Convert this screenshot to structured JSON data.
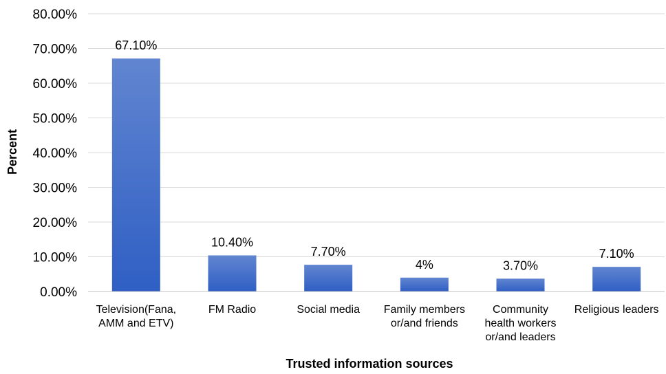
{
  "chart_data": {
    "type": "bar",
    "categories": [
      [
        "Television(Fana,",
        "AMM and ETV)"
      ],
      [
        "FM Radio"
      ],
      [
        "Social media"
      ],
      [
        "Family members",
        "or/and friends"
      ],
      [
        "Community",
        "health workers",
        "or/and leaders"
      ],
      [
        "Religious leaders"
      ]
    ],
    "values": [
      67.1,
      10.4,
      7.7,
      4,
      3.7,
      7.1
    ],
    "data_labels": [
      "67.10%",
      "10.40%",
      "7.70%",
      "4%",
      "3.70%",
      "7.10%"
    ],
    "xlabel": "Trusted information sources",
    "ylabel": "Percent",
    "ylim": [
      0,
      80
    ],
    "y_ticks": [
      0,
      10,
      20,
      30,
      40,
      50,
      60,
      70,
      80
    ],
    "y_tick_labels": [
      "0.00%",
      "10.00%",
      "20.00%",
      "30.00%",
      "40.00%",
      "50.00%",
      "60.00%",
      "70.00%",
      "80.00%"
    ],
    "grid": true,
    "legend": "none",
    "colors": {
      "bar_top": "#6185d0",
      "bar_bottom": "#2f5fc4"
    }
  }
}
